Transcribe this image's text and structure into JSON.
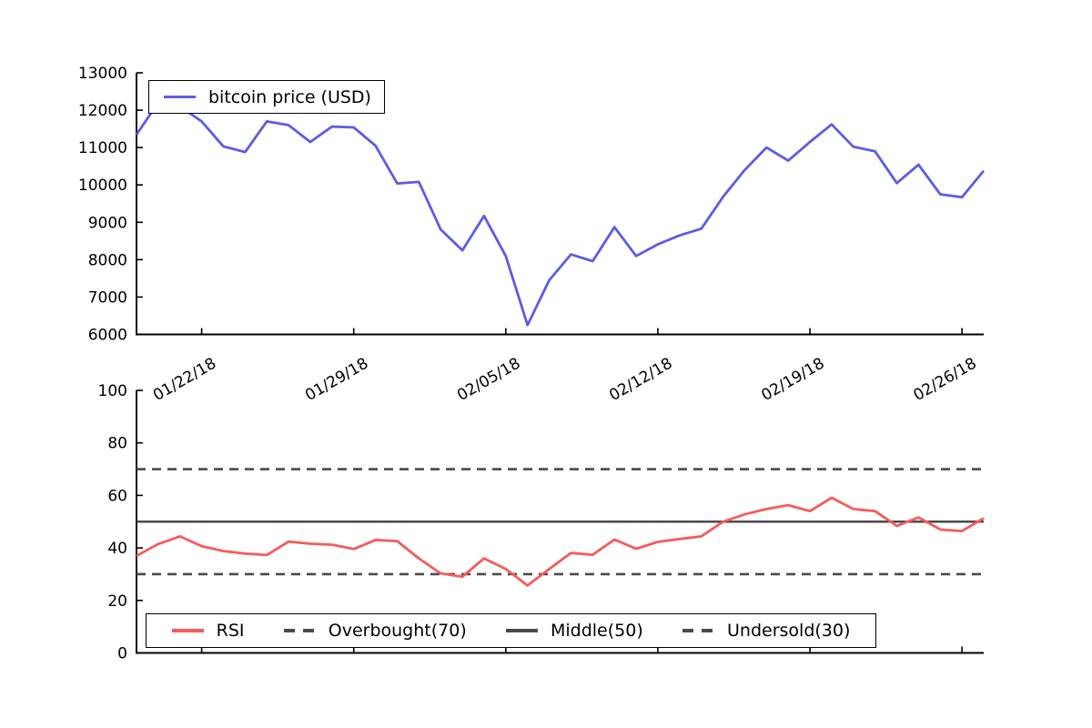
{
  "figure": {
    "background": "#ffffff"
  },
  "colors": {
    "price_line": "#5c5ce6",
    "rsi_line": "#f85a5a",
    "threshold_line": "#4a4a4a",
    "axis": "#000000"
  },
  "chart_data": [
    {
      "type": "line",
      "name": "bitcoin-price-chart",
      "x": [
        "01/19/18",
        "01/20/18",
        "01/21/18",
        "01/22/18",
        "01/23/18",
        "01/24/18",
        "01/25/18",
        "01/26/18",
        "01/27/18",
        "01/28/18",
        "01/29/18",
        "01/30/18",
        "01/31/18",
        "02/01/18",
        "02/02/18",
        "02/03/18",
        "02/04/18",
        "02/05/18",
        "02/06/18",
        "02/07/18",
        "02/08/18",
        "02/09/18",
        "02/10/18",
        "02/11/18",
        "02/12/18",
        "02/13/18",
        "02/14/18",
        "02/15/18",
        "02/16/18",
        "02/17/18",
        "02/18/18",
        "02/19/18",
        "02/20/18",
        "02/21/18",
        "02/22/18",
        "02/23/18",
        "02/24/18",
        "02/25/18",
        "02/26/18",
        "02/27/18"
      ],
      "series": [
        {
          "name": "bitcoin price (USD)",
          "color": "#5c5ce6",
          "style": "solid",
          "values": [
            11350,
            12200,
            12100,
            11700,
            11030,
            10880,
            11700,
            11600,
            11150,
            11560,
            11540,
            11050,
            10040,
            10080,
            8810,
            8250,
            9170,
            8100,
            6250,
            7450,
            8140,
            7960,
            8870,
            8100,
            8410,
            8650,
            8830,
            9680,
            10400,
            11000,
            10650,
            11150,
            11620,
            11020,
            10900,
            10050,
            10540,
            9750,
            9670,
            10380
          ]
        }
      ],
      "ylim": [
        6000,
        13000
      ],
      "yticks": [
        "6000",
        "7000",
        "8000",
        "9000",
        "10000",
        "11000",
        "12000",
        "13000"
      ],
      "xticks": [
        {
          "label": "01/22/18",
          "index": 3
        },
        {
          "label": "01/29/18",
          "index": 10
        },
        {
          "label": "02/05/18",
          "index": 17
        },
        {
          "label": "02/12/18",
          "index": 24
        },
        {
          "label": "02/19/18",
          "index": 31
        },
        {
          "label": "02/26/18",
          "index": 38
        }
      ],
      "xtick_labels_visible": true,
      "xtick_label_rotation": 30,
      "grid": false,
      "legend": {
        "position": "upper-left",
        "entries": [
          {
            "label": "bitcoin price (USD)",
            "color": "#5c5ce6",
            "dash": "solid"
          }
        ]
      }
    },
    {
      "type": "line",
      "name": "rsi-chart",
      "x": [
        "01/19/18",
        "01/20/18",
        "01/21/18",
        "01/22/18",
        "01/23/18",
        "01/24/18",
        "01/25/18",
        "01/26/18",
        "01/27/18",
        "01/28/18",
        "01/29/18",
        "01/30/18",
        "01/31/18",
        "02/01/18",
        "02/02/18",
        "02/03/18",
        "02/04/18",
        "02/05/18",
        "02/06/18",
        "02/07/18",
        "02/08/18",
        "02/09/18",
        "02/10/18",
        "02/11/18",
        "02/12/18",
        "02/13/18",
        "02/14/18",
        "02/15/18",
        "02/16/18",
        "02/17/18",
        "02/18/18",
        "02/19/18",
        "02/20/18",
        "02/21/18",
        "02/22/18",
        "02/23/18",
        "02/24/18",
        "02/25/18",
        "02/26/18",
        "02/27/18"
      ],
      "series": [
        {
          "name": "RSI",
          "color": "#f85a5a",
          "style": "solid",
          "values": [
            37.0,
            41.5,
            44.4,
            40.7,
            38.8,
            37.8,
            37.3,
            42.4,
            41.6,
            41.2,
            39.6,
            43.0,
            42.6,
            36.0,
            30.3,
            29.0,
            36.0,
            32.0,
            25.7,
            32.0,
            38.1,
            37.4,
            43.2,
            39.7,
            42.3,
            43.4,
            44.4,
            50.0,
            52.8,
            54.8,
            56.3,
            54.0,
            59.1,
            54.8,
            54.0,
            48.4,
            51.6,
            47.0,
            46.4,
            51.3
          ]
        }
      ],
      "hlines": [
        {
          "name": "Overbought(70)",
          "y": 70,
          "style": "dashed",
          "color": "#4a4a4a"
        },
        {
          "name": "Middle(50)",
          "y": 50,
          "style": "solid",
          "color": "#4a4a4a"
        },
        {
          "name": "Undersold(30)",
          "y": 30,
          "style": "dashed",
          "color": "#4a4a4a"
        }
      ],
      "ylim": [
        0,
        100
      ],
      "yticks": [
        "0",
        "20",
        "40",
        "60",
        "80",
        "100"
      ],
      "xticks": [
        {
          "label": "01/22/18",
          "index": 3
        },
        {
          "label": "01/29/18",
          "index": 10
        },
        {
          "label": "02/05/18",
          "index": 17
        },
        {
          "label": "02/12/18",
          "index": 24
        },
        {
          "label": "02/19/18",
          "index": 31
        },
        {
          "label": "02/26/18",
          "index": 38
        }
      ],
      "xtick_labels_visible": false,
      "grid": false,
      "legend": {
        "position": "lower-left",
        "entries": [
          {
            "label": "RSI",
            "color": "#f85a5a",
            "dash": "solid"
          },
          {
            "label": "Overbought(70)",
            "color": "#4a4a4a",
            "dash": "dashed"
          },
          {
            "label": "Middle(50)",
            "color": "#4a4a4a",
            "dash": "solid"
          },
          {
            "label": "Undersold(30)",
            "color": "#4a4a4a",
            "dash": "dashed"
          }
        ]
      }
    }
  ]
}
